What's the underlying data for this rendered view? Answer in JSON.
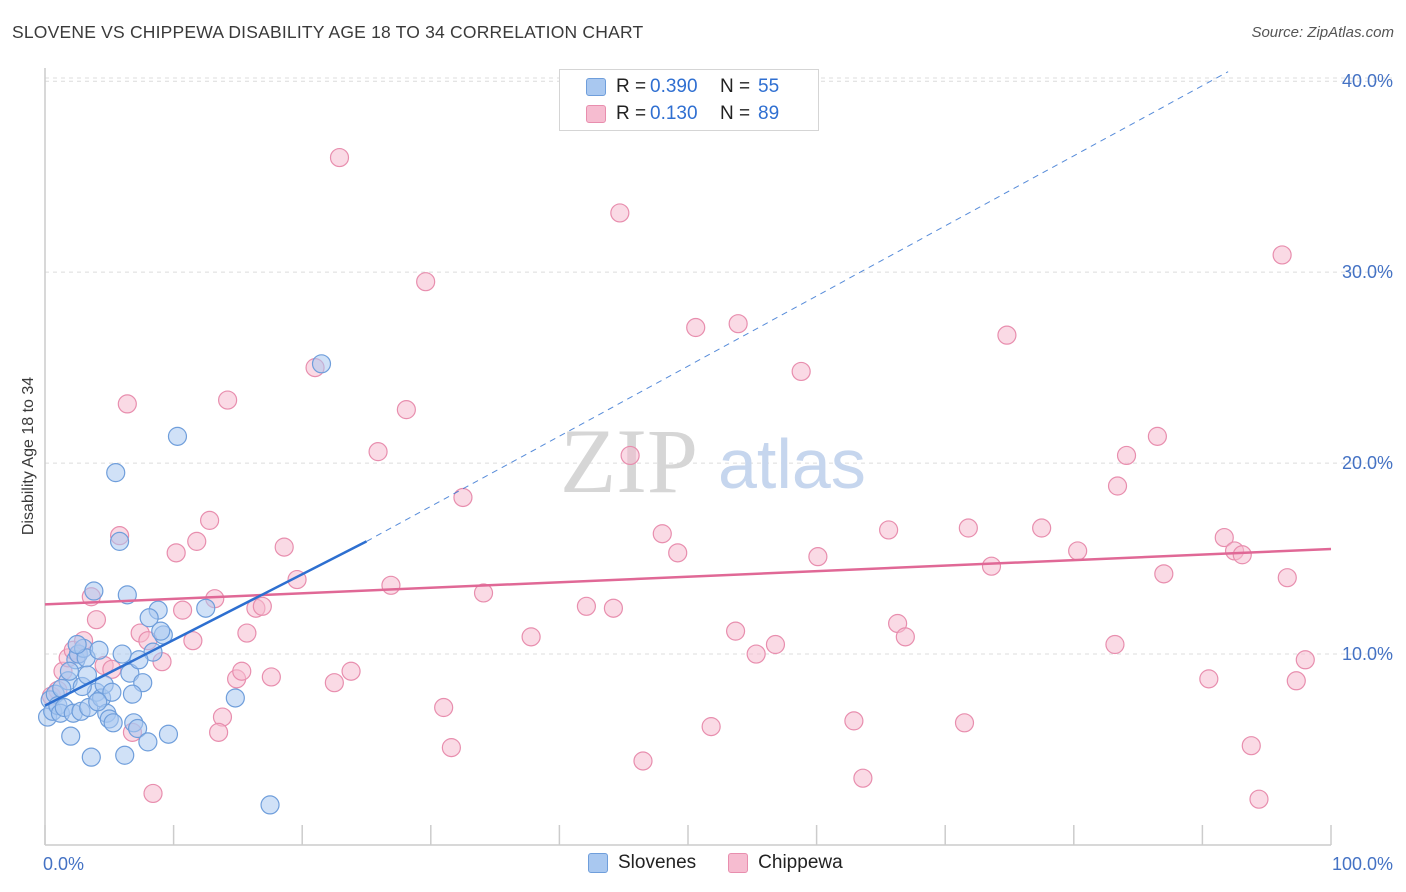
{
  "header": {
    "title": "SLOVENE VS CHIPPEWA DISABILITY AGE 18 TO 34 CORRELATION CHART",
    "source": "Source: ZipAtlas.com"
  },
  "watermark": {
    "zip": "ZIP",
    "atlas": "atlas"
  },
  "legend_top": {
    "rows": [
      {
        "r_label": "R =",
        "r_value": "0.390",
        "n_label": "N =",
        "n_value": "55"
      },
      {
        "r_label": "R =",
        "r_value": "0.130",
        "n_label": "N =",
        "n_value": "89"
      }
    ]
  },
  "legend_bottom": {
    "series1": "Slovenes",
    "series2": "Chippewa"
  },
  "colors": {
    "blue_fill": "#a9c8f0",
    "blue_stroke": "#6f9edb",
    "blue_line": "#2d6fd0",
    "pink_fill": "#f6bcd0",
    "pink_stroke": "#e88eae",
    "pink_line": "#e06896",
    "tick_text": "#4472c4",
    "grid": "#dcdcdc"
  },
  "chart_data": {
    "type": "scatter",
    "title": "SLOVENE VS CHIPPEWA DISABILITY AGE 18 TO 34 CORRELATION CHART",
    "xlabel": "",
    "ylabel": "Disability Age 18 to 34",
    "xlim": [
      0,
      100
    ],
    "ylim": [
      0,
      42
    ],
    "x_tick_labels": [
      "0.0%",
      "100.0%"
    ],
    "y_ticks": [
      10,
      20,
      30,
      40
    ],
    "y_tick_labels": [
      "10.0%",
      "20.0%",
      "30.0%",
      "40.0%"
    ],
    "series": [
      {
        "name": "Slovenes",
        "r": 0.39,
        "n": 55,
        "trend": {
          "x0": 0,
          "y0": 7.3,
          "x_solid_end": 25,
          "y_solid_end": 15.9,
          "x_dash_end": 92,
          "y_dash_end": 40.5
        },
        "points": [
          [
            0.2,
            6.7
          ],
          [
            0.4,
            7.6
          ],
          [
            0.6,
            7.0
          ],
          [
            0.8,
            7.9
          ],
          [
            1.0,
            7.3
          ],
          [
            1.2,
            6.9
          ],
          [
            1.5,
            7.2
          ],
          [
            1.8,
            8.6
          ],
          [
            2.0,
            5.7
          ],
          [
            2.2,
            6.9
          ],
          [
            2.4,
            9.7
          ],
          [
            2.6,
            10.0
          ],
          [
            2.8,
            7.0
          ],
          [
            3.0,
            10.3
          ],
          [
            3.2,
            9.8
          ],
          [
            3.4,
            7.2
          ],
          [
            3.6,
            4.6
          ],
          [
            3.8,
            13.3
          ],
          [
            4.0,
            8.0
          ],
          [
            4.2,
            10.2
          ],
          [
            4.4,
            7.7
          ],
          [
            4.6,
            8.4
          ],
          [
            4.8,
            6.9
          ],
          [
            5.0,
            6.6
          ],
          [
            5.2,
            8.0
          ],
          [
            5.5,
            19.5
          ],
          [
            5.8,
            15.9
          ],
          [
            6.0,
            10.0
          ],
          [
            6.2,
            4.7
          ],
          [
            6.4,
            13.1
          ],
          [
            6.6,
            9.0
          ],
          [
            6.9,
            6.4
          ],
          [
            7.2,
            6.1
          ],
          [
            7.6,
            8.5
          ],
          [
            8.0,
            5.4
          ],
          [
            8.4,
            10.1
          ],
          [
            8.8,
            12.3
          ],
          [
            9.2,
            11.0
          ],
          [
            9.6,
            5.8
          ],
          [
            10.3,
            21.4
          ],
          [
            8.1,
            11.9
          ],
          [
            9.0,
            11.2
          ],
          [
            12.5,
            12.4
          ],
          [
            14.8,
            7.7
          ],
          [
            17.5,
            2.1
          ],
          [
            21.5,
            25.2
          ],
          [
            2.9,
            8.3
          ],
          [
            1.9,
            9.1
          ],
          [
            4.1,
            7.5
          ],
          [
            5.3,
            6.4
          ],
          [
            6.8,
            7.9
          ],
          [
            7.3,
            9.7
          ],
          [
            3.3,
            8.9
          ],
          [
            2.5,
            10.5
          ],
          [
            1.3,
            8.2
          ]
        ]
      },
      {
        "name": "Chippewa",
        "r": 0.13,
        "n": 89,
        "trend": {
          "x0": 0,
          "y0": 12.6,
          "x1": 100,
          "y1": 15.5
        },
        "points": [
          [
            0.5,
            7.8
          ],
          [
            1.0,
            8.1
          ],
          [
            1.4,
            9.1
          ],
          [
            1.8,
            9.8
          ],
          [
            2.2,
            10.2
          ],
          [
            2.6,
            10.0
          ],
          [
            3.0,
            10.7
          ],
          [
            3.6,
            13.0
          ],
          [
            4.0,
            11.8
          ],
          [
            4.6,
            9.4
          ],
          [
            5.2,
            9.2
          ],
          [
            5.8,
            16.2
          ],
          [
            6.4,
            23.1
          ],
          [
            6.8,
            5.9
          ],
          [
            7.4,
            11.1
          ],
          [
            8.0,
            10.7
          ],
          [
            8.4,
            2.7
          ],
          [
            9.1,
            9.6
          ],
          [
            10.2,
            15.3
          ],
          [
            10.7,
            12.3
          ],
          [
            11.5,
            10.7
          ],
          [
            11.8,
            15.9
          ],
          [
            12.8,
            17.0
          ],
          [
            13.2,
            12.9
          ],
          [
            13.8,
            6.7
          ],
          [
            14.2,
            23.3
          ],
          [
            14.9,
            8.7
          ],
          [
            15.3,
            9.1
          ],
          [
            15.7,
            11.1
          ],
          [
            16.4,
            12.4
          ],
          [
            16.9,
            12.5
          ],
          [
            17.6,
            8.8
          ],
          [
            18.6,
            15.6
          ],
          [
            19.6,
            13.9
          ],
          [
            21.0,
            25.0
          ],
          [
            22.5,
            8.5
          ],
          [
            22.9,
            36.0
          ],
          [
            23.8,
            9.1
          ],
          [
            25.9,
            20.6
          ],
          [
            26.9,
            13.6
          ],
          [
            28.1,
            22.8
          ],
          [
            29.6,
            29.5
          ],
          [
            31.0,
            7.2
          ],
          [
            31.6,
            5.1
          ],
          [
            32.5,
            18.2
          ],
          [
            34.1,
            13.2
          ],
          [
            37.8,
            10.9
          ],
          [
            42.1,
            12.5
          ],
          [
            44.2,
            12.4
          ],
          [
            44.7,
            33.1
          ],
          [
            45.5,
            20.4
          ],
          [
            46.5,
            4.4
          ],
          [
            48.0,
            16.3
          ],
          [
            49.2,
            15.3
          ],
          [
            50.6,
            27.1
          ],
          [
            51.8,
            6.2
          ],
          [
            53.7,
            11.2
          ],
          [
            53.9,
            27.3
          ],
          [
            55.3,
            10.0
          ],
          [
            56.8,
            10.5
          ],
          [
            58.8,
            24.8
          ],
          [
            60.1,
            15.1
          ],
          [
            62.9,
            6.5
          ],
          [
            63.6,
            3.5
          ],
          [
            65.6,
            16.5
          ],
          [
            66.3,
            11.6
          ],
          [
            66.9,
            10.9
          ],
          [
            71.5,
            6.4
          ],
          [
            71.8,
            16.6
          ],
          [
            73.6,
            14.6
          ],
          [
            74.8,
            26.7
          ],
          [
            77.5,
            16.6
          ],
          [
            80.3,
            15.4
          ],
          [
            83.4,
            18.8
          ],
          [
            83.2,
            10.5
          ],
          [
            84.1,
            20.4
          ],
          [
            86.5,
            21.4
          ],
          [
            87.0,
            14.2
          ],
          [
            90.5,
            8.7
          ],
          [
            91.7,
            16.1
          ],
          [
            92.5,
            15.4
          ],
          [
            93.1,
            15.2
          ],
          [
            93.8,
            5.2
          ],
          [
            94.4,
            2.4
          ],
          [
            96.2,
            30.9
          ],
          [
            96.6,
            14.0
          ],
          [
            97.3,
            8.6
          ],
          [
            98.0,
            9.7
          ],
          [
            13.5,
            5.9
          ]
        ]
      }
    ]
  }
}
